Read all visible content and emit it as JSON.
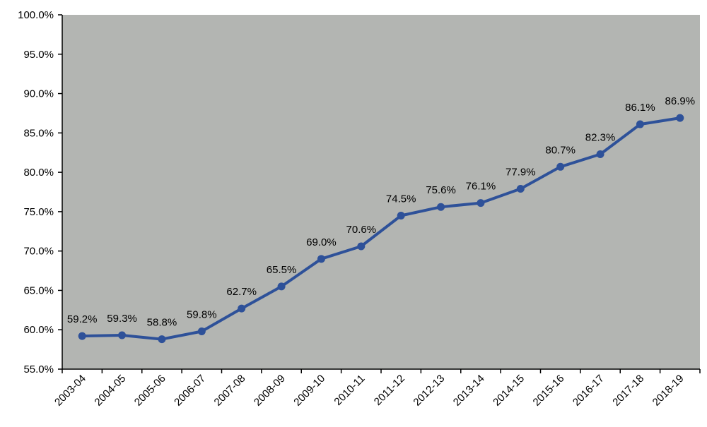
{
  "chart_data": {
    "type": "line",
    "title": "",
    "xlabel": "",
    "ylabel": "",
    "categories": [
      "2003-04",
      "2004-05",
      "2005-06",
      "2006-07",
      "2007-08",
      "2008-09",
      "2009-10",
      "2010-11",
      "2011-12",
      "2012-13",
      "2013-14",
      "2014-15",
      "2015-16",
      "2016-17",
      "2017-18",
      "2018-19"
    ],
    "series": [
      {
        "values": [
          59.2,
          59.3,
          58.8,
          59.8,
          62.7,
          65.5,
          69.0,
          70.6,
          74.5,
          75.6,
          76.1,
          77.9,
          80.7,
          82.3,
          86.1,
          86.9
        ],
        "data_labels": [
          "59.2%",
          "59.3%",
          "58.8%",
          "59.8%",
          "62.7%",
          "65.5%",
          "69.0%",
          "70.6%",
          "74.5%",
          "75.6%",
          "76.1%",
          "77.9%",
          "80.7%",
          "82.3%",
          "86.1%",
          "86.9%"
        ]
      }
    ],
    "ylim": [
      55,
      100
    ],
    "y_ticks": [
      55,
      60,
      65,
      70,
      75,
      80,
      85,
      90,
      95,
      100
    ],
    "y_tick_labels": [
      "55.0%",
      "60.0%",
      "65.0%",
      "70.0%",
      "75.0%",
      "80.0%",
      "85.0%",
      "90.0%",
      "95.0%",
      "100.0%"
    ],
    "grid": false,
    "legend": "none",
    "colors": {
      "line": "#2E5199",
      "plot_background": "#B3B5B2",
      "page_background": "#FFFFFF",
      "axis": "#000000"
    }
  }
}
